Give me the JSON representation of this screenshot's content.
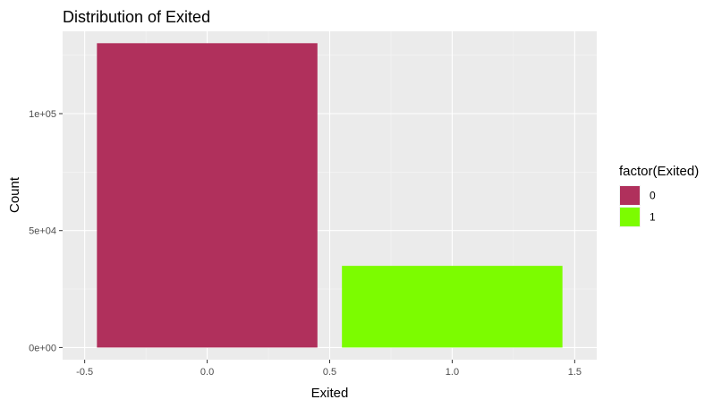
{
  "chart_data": {
    "type": "bar",
    "title": "Distribution of Exited",
    "xlabel": "Exited",
    "ylabel": "Count",
    "xlim": [
      -0.5,
      1.5
    ],
    "ylim": [
      0,
      130000
    ],
    "x_ticks": [
      -0.5,
      0.0,
      0.5,
      1.0,
      1.5
    ],
    "x_tick_labels": [
      "-0.5",
      "0.0",
      "0.5",
      "1.0",
      "1.5"
    ],
    "y_ticks": [
      0,
      50000,
      100000
    ],
    "y_tick_labels": [
      "0e+00",
      "5e+04",
      "1e+05"
    ],
    "bar_width": 0.9,
    "categories": [
      "0",
      "1"
    ],
    "x": [
      0,
      1
    ],
    "values": [
      130113,
      34921
    ],
    "grid": true,
    "legend": {
      "title": "factor(Exited)",
      "placement": "right",
      "entries": [
        "0",
        "1"
      ]
    },
    "colors": {
      "0": "#B0305C",
      "1": "#7CFC00"
    },
    "panel_background": "#EBEBEB",
    "grid_color": "#FFFFFF"
  }
}
